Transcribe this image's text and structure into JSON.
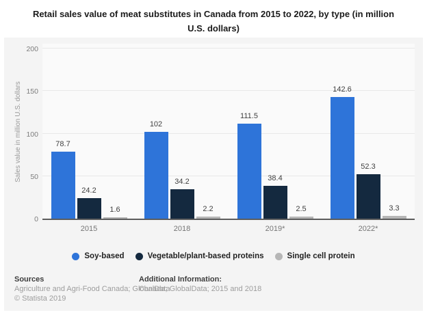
{
  "chart_data": {
    "type": "bar",
    "title": "Retail sales value of meat substitutes in Canada from 2015 to 2022, by type (in million U.S. dollars)",
    "categories": [
      "2015",
      "2018",
      "2019*",
      "2022*"
    ],
    "series": [
      {
        "name": "Soy-based",
        "color": "#2e74d9",
        "values": [
          78.7,
          102,
          111.5,
          142.6
        ]
      },
      {
        "name": "Vegetable/plant-based proteins",
        "color": "#14293f",
        "values": [
          24.2,
          34.2,
          38.4,
          52.3
        ]
      },
      {
        "name": "Single cell protein",
        "color": "#b6b6b6",
        "values": [
          1.6,
          2.2,
          2.5,
          3.3
        ]
      }
    ],
    "xlabel": "",
    "ylabel": "Sales value in million U.S. dollars",
    "ylim": [
      0,
      200
    ],
    "yticks": [
      0,
      50,
      100,
      150,
      200
    ],
    "grid": true,
    "legend_position": "bottom"
  },
  "footer": {
    "sources_label": "Sources",
    "sources_line": "Agriculture and Agri-Food Canada; GlobalData",
    "copyright": "© Statista 2019",
    "additional_label": "Additional Information:",
    "additional_line": "Canada; GlobalData; 2015 and 2018"
  }
}
